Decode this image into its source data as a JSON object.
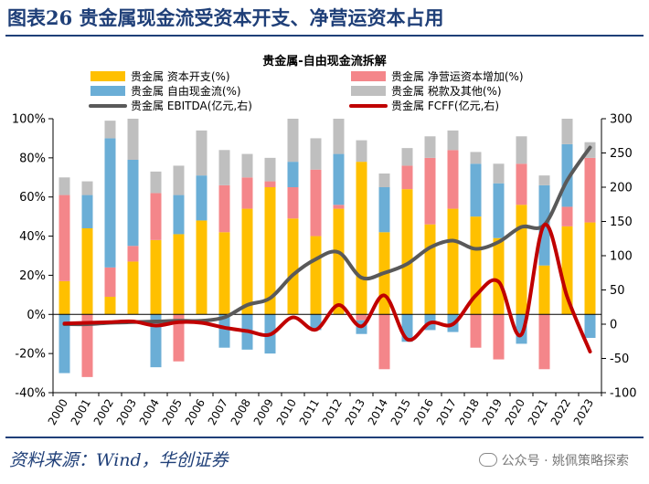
{
  "figure": {
    "title": "图表26 贵金属现金流受资本开支、净营运资本占用",
    "source": "资料来源：Wind，华创证券",
    "watermark": "公众号 · 姚佩策略探索"
  },
  "colors": {
    "capex": "#FFC000",
    "fcf": "#6BAED6",
    "nwc": "#F4868A",
    "other": "#BFBFBF",
    "ebitda": "#595959",
    "fcff": "#C00000"
  },
  "chart_data": {
    "type": "bar",
    "title": "贵金属-自由现金流拆解",
    "categories": [
      "2000",
      "2001",
      "2002",
      "2003",
      "2004",
      "2005",
      "2006",
      "2007",
      "2008",
      "2009",
      "2010",
      "2011",
      "2012",
      "2013",
      "2014",
      "2015",
      "2016",
      "2017",
      "2018",
      "2019",
      "2020",
      "2021",
      "2022",
      "2023"
    ],
    "y_left": {
      "range": [
        -40,
        100
      ],
      "ticks": [
        "-40%",
        "-20%",
        "0%",
        "20%",
        "40%",
        "60%",
        "80%",
        "100%"
      ]
    },
    "y_right": {
      "range": [
        -100,
        300
      ],
      "ticks": [
        "-100",
        "-50",
        "0",
        "50",
        "100",
        "150",
        "200",
        "250",
        "300"
      ]
    },
    "series": [
      {
        "name": "贵金属 资本开支(%)",
        "axis": "left",
        "kind": "bar",
        "values": [
          17,
          44,
          9,
          27,
          38,
          41,
          48,
          42,
          54,
          65,
          49,
          40,
          54,
          78,
          42,
          64,
          46,
          54,
          50,
          39,
          56,
          25,
          45,
          47
        ]
      },
      {
        "name": "贵金属 净营运资本增加(%)",
        "axis": "left",
        "kind": "bar",
        "values": [
          44,
          -32,
          15,
          8,
          24,
          -24,
          0,
          24,
          16,
          3,
          16,
          34,
          2,
          -3,
          -28,
          12,
          34,
          30,
          -17,
          -23,
          21,
          -28,
          10,
          33
        ]
      },
      {
        "name": "贵金属 自由现金流(%)",
        "axis": "left",
        "kind": "bar",
        "values": [
          -30,
          17,
          66,
          44,
          -27,
          20,
          23,
          -17,
          -18,
          -20,
          13,
          -8,
          26,
          -7,
          23,
          -14,
          -8,
          -9,
          27,
          28,
          -15,
          41,
          32,
          -12
        ]
      },
      {
        "name": "贵金属 税款及其他(%)",
        "axis": "left",
        "kind": "bar",
        "values": [
          9,
          7,
          9,
          21,
          11,
          15,
          23,
          18,
          12,
          12,
          22,
          16,
          18,
          11,
          7,
          9,
          11,
          10,
          6,
          10,
          14,
          5,
          13,
          8
        ]
      },
      {
        "name": "贵金属 EBITDA(亿元,右)",
        "axis": "right",
        "kind": "line",
        "values": [
          0,
          0,
          2,
          3,
          4,
          5,
          5,
          10,
          28,
          38,
          72,
          95,
          105,
          68,
          75,
          88,
          112,
          122,
          110,
          120,
          142,
          145,
          210,
          258
        ]
      },
      {
        "name": "贵金属 FCFF(亿元,右)",
        "axis": "right",
        "kind": "line",
        "values": [
          1,
          2,
          3,
          4,
          -2,
          3,
          2,
          -5,
          -10,
          -15,
          10,
          -8,
          28,
          -3,
          42,
          -22,
          2,
          0,
          42,
          62,
          -15,
          145,
          40,
          -40
        ]
      }
    ],
    "legend": "top",
    "grid": false
  }
}
